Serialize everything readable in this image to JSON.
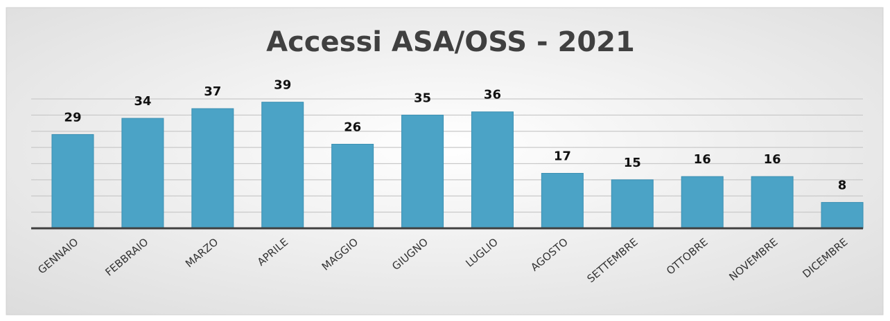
{
  "chart_data": {
    "type": "bar",
    "title": "Accessi ASA/OSS - 2021",
    "categories": [
      "GENNAIO",
      "FEBBRAIO",
      "MARZO",
      "APRILE",
      "MAGGIO",
      "GIUGNO",
      "LUGLIO",
      "AGOSTO",
      "SETTEMBRE",
      "OTTOBRE",
      "NOVEMBRE",
      "DICEMBRE"
    ],
    "values": [
      29,
      34,
      37,
      39,
      26,
      35,
      36,
      17,
      15,
      16,
      16,
      8
    ],
    "color": "#4ba3c6",
    "ylim": [
      0,
      40
    ],
    "yticks": [
      0,
      5,
      10,
      15,
      20,
      25,
      30,
      35,
      40
    ],
    "grid": true
  }
}
